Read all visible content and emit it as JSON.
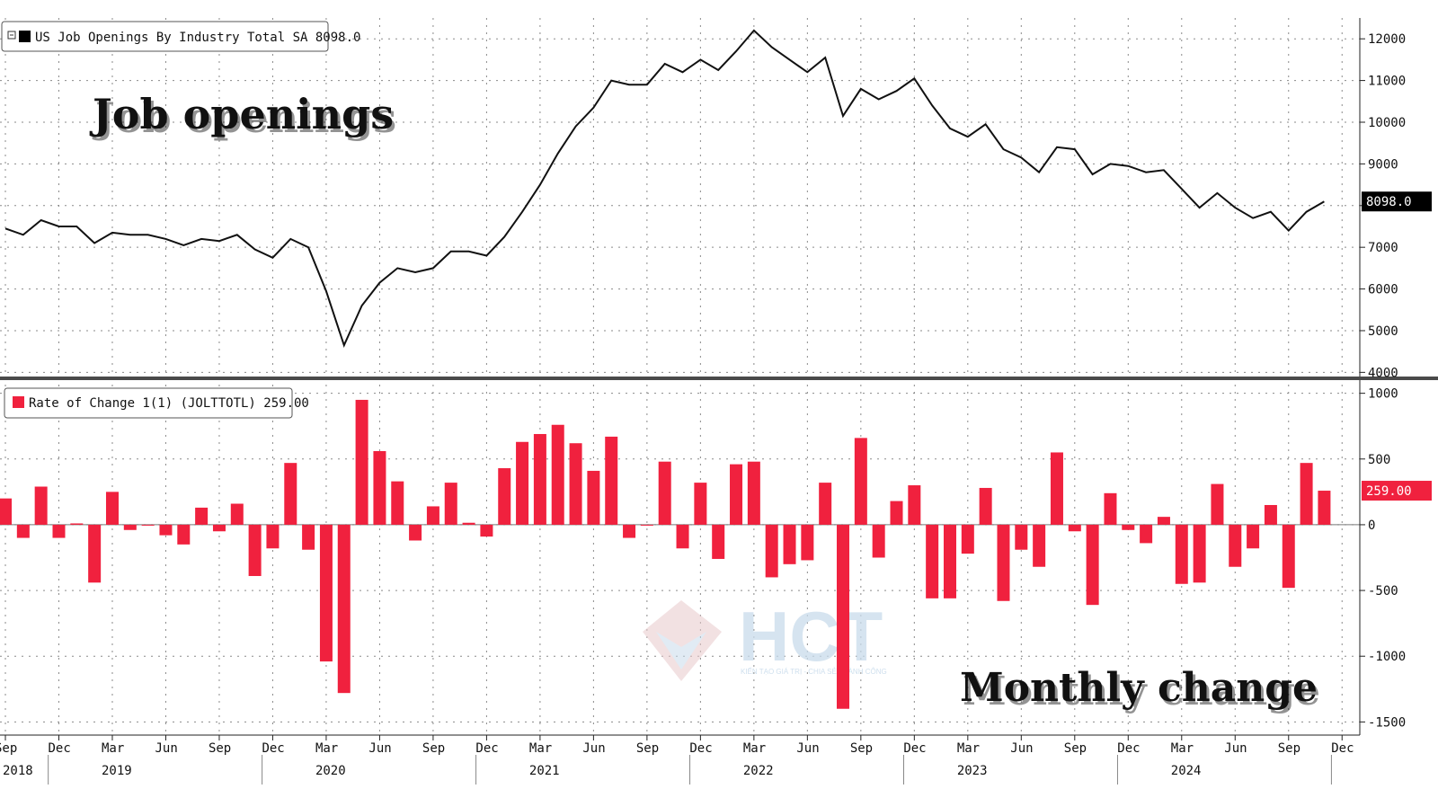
{
  "colors": {
    "line": "#111111",
    "bar": "#f0213e",
    "badge_top_bg": "#000000",
    "badge_bottom_bg": "#f0213e",
    "watermark": "#c9dcec"
  },
  "top_panel": {
    "legend_icon": "legend-collapse-icon",
    "legend_label": "US Job Openings By Industry Total SA 8098.0",
    "overlay_title": "Job openings",
    "last_value_badge": "8098.0",
    "yticks": [
      "4000",
      "5000",
      "6000",
      "7000",
      "8000",
      "9000",
      "10000",
      "11000",
      "12000"
    ]
  },
  "bottom_panel": {
    "legend_label": "Rate of Change 1(1) (JOLTTOTL) 259.00",
    "overlay_title": "Monthly change",
    "last_value_badge": "259.00",
    "yticks": [
      "-1500",
      "-1000",
      "-500",
      "0",
      "500",
      "1000"
    ]
  },
  "x_axis": {
    "month_ticks": [
      "Sep",
      "Dec",
      "Mar",
      "Jun",
      "Sep",
      "Dec",
      "Mar",
      "Jun",
      "Sep",
      "Dec",
      "Mar",
      "Jun",
      "Sep",
      "Dec",
      "Mar",
      "Jun",
      "Sep",
      "Dec",
      "Mar",
      "Jun",
      "Sep",
      "Dec",
      "Mar",
      "Jun",
      "Sep",
      "Dec"
    ],
    "years": [
      "2018",
      "2019",
      "2020",
      "2021",
      "2022",
      "2023",
      "2024"
    ]
  },
  "watermark": {
    "text": "HCT",
    "subtitle": "KIẾN TẠO GIÁ TRỊ - CHIA SẺ THÀNH CÔNG"
  },
  "chart_data": [
    {
      "type": "line",
      "title": "US Job Openings By Industry Total SA 8098.0",
      "x": [
        "2018-09",
        "2018-10",
        "2018-11",
        "2018-12",
        "2019-01",
        "2019-02",
        "2019-03",
        "2019-04",
        "2019-05",
        "2019-06",
        "2019-07",
        "2019-08",
        "2019-09",
        "2019-10",
        "2019-11",
        "2019-12",
        "2020-01",
        "2020-02",
        "2020-03",
        "2020-04",
        "2020-05",
        "2020-06",
        "2020-07",
        "2020-08",
        "2020-09",
        "2020-10",
        "2020-11",
        "2020-12",
        "2021-01",
        "2021-02",
        "2021-03",
        "2021-04",
        "2021-05",
        "2021-06",
        "2021-07",
        "2021-08",
        "2021-09",
        "2021-10",
        "2021-11",
        "2021-12",
        "2022-01",
        "2022-02",
        "2022-03",
        "2022-04",
        "2022-05",
        "2022-06",
        "2022-07",
        "2022-08",
        "2022-09",
        "2022-10",
        "2022-11",
        "2022-12",
        "2023-01",
        "2023-02",
        "2023-03",
        "2023-04",
        "2023-05",
        "2023-06",
        "2023-07",
        "2023-08",
        "2023-09",
        "2023-10",
        "2023-11",
        "2023-12",
        "2024-01",
        "2024-02",
        "2024-03",
        "2024-04",
        "2024-05",
        "2024-06",
        "2024-07",
        "2024-08",
        "2024-09",
        "2024-10",
        "2024-11"
      ],
      "series": [
        {
          "values": [
            7450,
            7300,
            7650,
            7500,
            7500,
            7100,
            7350,
            7300,
            7300,
            7200,
            7050,
            7200,
            7150,
            7300,
            6950,
            6750,
            7200,
            7000,
            5950,
            4650,
            5600,
            6150,
            6500,
            6400,
            6500,
            6900,
            6900,
            6800,
            7250,
            7850,
            8500,
            9250,
            9900,
            10350,
            11000,
            10900,
            10900,
            11400,
            11200,
            11500,
            11250,
            11700,
            12200,
            11800,
            11500,
            11200,
            11550,
            10150,
            10800,
            10550,
            10750,
            11050,
            10400,
            9850,
            9650,
            9950,
            9350,
            9150,
            8800,
            9400,
            9350,
            8750,
            9000,
            8950,
            8800,
            8850,
            8400,
            7950,
            8300,
            7950,
            7700,
            7850,
            7400,
            7850,
            8098
          ]
        }
      ],
      "ylim": [
        3900,
        12500
      ],
      "yticks": [
        4000,
        5000,
        6000,
        7000,
        8000,
        9000,
        10000,
        11000,
        12000
      ],
      "grid": true,
      "legend": "top-left"
    },
    {
      "type": "bar",
      "title": "Rate of Change 1(1) (JOLTTOTL) 259.00",
      "x": [
        "2018-09",
        "2018-10",
        "2018-11",
        "2018-12",
        "2019-01",
        "2019-02",
        "2019-03",
        "2019-04",
        "2019-05",
        "2019-06",
        "2019-07",
        "2019-08",
        "2019-09",
        "2019-10",
        "2019-11",
        "2019-12",
        "2020-01",
        "2020-02",
        "2020-03",
        "2020-04",
        "2020-05",
        "2020-06",
        "2020-07",
        "2020-08",
        "2020-09",
        "2020-10",
        "2020-11",
        "2020-12",
        "2021-01",
        "2021-02",
        "2021-03",
        "2021-04",
        "2021-05",
        "2021-06",
        "2021-07",
        "2021-08",
        "2021-09",
        "2021-10",
        "2021-11",
        "2021-12",
        "2022-01",
        "2022-02",
        "2022-03",
        "2022-04",
        "2022-05",
        "2022-06",
        "2022-07",
        "2022-08",
        "2022-09",
        "2022-10",
        "2022-11",
        "2022-12",
        "2023-01",
        "2023-02",
        "2023-03",
        "2023-04",
        "2023-05",
        "2023-06",
        "2023-07",
        "2023-08",
        "2023-09",
        "2023-10",
        "2023-11",
        "2023-12",
        "2024-01",
        "2024-02",
        "2024-03",
        "2024-04",
        "2024-05",
        "2024-06",
        "2024-07",
        "2024-08",
        "2024-09",
        "2024-10",
        "2024-11"
      ],
      "series": [
        {
          "values": [
            200,
            -100,
            290,
            -100,
            10,
            -440,
            250,
            -40,
            0,
            -80,
            -150,
            130,
            -50,
            160,
            -390,
            -180,
            470,
            -190,
            -1040,
            -1280,
            950,
            560,
            330,
            -120,
            140,
            320,
            15,
            -90,
            430,
            630,
            690,
            760,
            620,
            410,
            670,
            -100,
            0,
            480,
            -180,
            320,
            -260,
            460,
            480,
            -400,
            -300,
            -270,
            320,
            -1400,
            660,
            -250,
            180,
            300,
            -560,
            -560,
            -220,
            280,
            -580,
            -190,
            -320,
            550,
            -50,
            -610,
            240,
            -40,
            -140,
            60,
            -450,
            -440,
            310,
            -320,
            -180,
            150,
            -480,
            470,
            259
          ]
        }
      ],
      "ylim": [
        -1600,
        1100
      ],
      "yticks": [
        -1500,
        -1000,
        -500,
        0,
        500,
        1000
      ],
      "grid": true,
      "legend": "top-left"
    }
  ]
}
